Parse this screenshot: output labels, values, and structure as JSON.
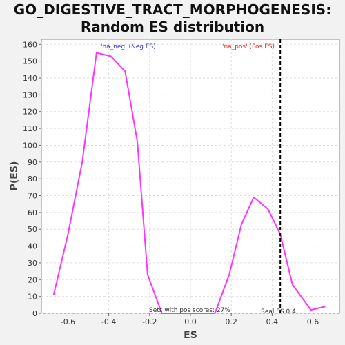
{
  "chart_data": {
    "type": "line",
    "title_line1": "GO_DIGESTIVE_TRACT_MORPHOGENESIS:",
    "title_line2": "Random ES distribution",
    "xlabel": "ES",
    "ylabel": "P(ES)",
    "xlim": [
      -0.73,
      0.73
    ],
    "ylim": [
      0,
      163
    ],
    "x_ticks": [
      -0.6,
      -0.4,
      -0.2,
      0.0,
      0.2,
      0.4,
      0.6
    ],
    "x_tick_labels": [
      "-0.6",
      "-0.4",
      "-0.2",
      "0.0",
      "0.2",
      "0.4",
      "0.6"
    ],
    "y_ticks": [
      0,
      10,
      20,
      30,
      40,
      50,
      60,
      70,
      80,
      90,
      100,
      110,
      120,
      130,
      140,
      150,
      160
    ],
    "grid": true,
    "series": [
      {
        "color": "#ff33ff",
        "x": [
          -0.67,
          -0.6,
          -0.53,
          -0.46,
          -0.39,
          -0.32,
          -0.26,
          -0.21,
          -0.14,
          -0.08,
          -0.02,
          0.05,
          0.12,
          0.19,
          0.25,
          0.31,
          0.38,
          0.44,
          0.5,
          0.59,
          0.66
        ],
        "y": [
          11,
          47,
          90,
          155,
          153,
          144,
          102,
          23,
          0,
          0,
          0,
          0,
          0,
          23,
          53,
          69,
          62,
          47,
          17,
          2,
          4
        ]
      }
    ],
    "real_es": 0.44,
    "annotations": {
      "neg_label": "'na_neg' (Neg ES)",
      "pos_label": "'na_pos' (Pos ES)",
      "pos_scores": "Sets with pos scores: 27%",
      "real_es_label": "Real ES 0.4"
    },
    "colors": {
      "neg": "#3333cc",
      "pos": "#ee2222",
      "plot_bg": "#ffffff",
      "page_bg": "#f2f2f2",
      "grid": "#dddddd"
    }
  }
}
